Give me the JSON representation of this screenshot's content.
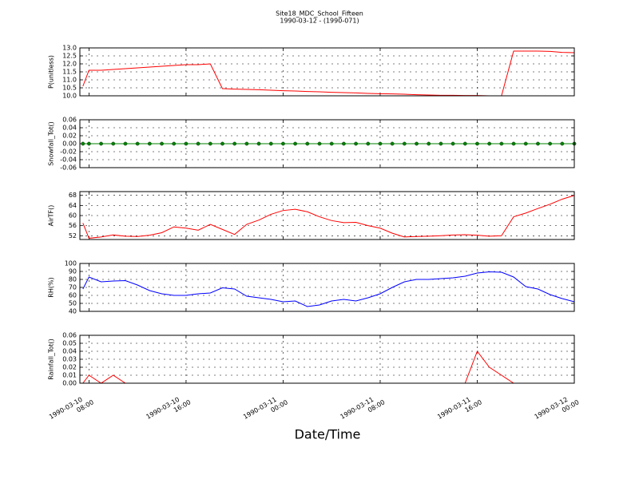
{
  "chart_data": [
    {
      "type": "line",
      "title": "Site18_MDC_School_Fifteen",
      "subtitle": "1990-03-12 - (1990-071)",
      "ylabel": "P(unitless)",
      "x": [
        "1990-03-10 07:30",
        "1990-03-10 08:00",
        "1990-03-10 09:00",
        "1990-03-10 10:00",
        "1990-03-10 11:00",
        "1990-03-10 12:00",
        "1990-03-10 13:00",
        "1990-03-10 14:00",
        "1990-03-10 15:00",
        "1990-03-10 16:00",
        "1990-03-10 17:00",
        "1990-03-10 18:00",
        "1990-03-10 19:00",
        "1990-03-10 20:00",
        "1990-03-10 21:00",
        "1990-03-10 22:00",
        "1990-03-10 23:00",
        "1990-03-11 00:00",
        "1990-03-11 01:00",
        "1990-03-11 02:00",
        "1990-03-11 03:00",
        "1990-03-11 04:00",
        "1990-03-11 05:00",
        "1990-03-11 06:00",
        "1990-03-11 07:00",
        "1990-03-11 08:00",
        "1990-03-11 09:00",
        "1990-03-11 10:00",
        "1990-03-11 11:00",
        "1990-03-11 12:00",
        "1990-03-11 13:00",
        "1990-03-11 14:00",
        "1990-03-11 15:00",
        "1990-03-11 16:00",
        "1990-03-11 17:00",
        "1990-03-11 18:00",
        "1990-03-11 19:00",
        "1990-03-11 20:00",
        "1990-03-11 21:00",
        "1990-03-11 22:00",
        "1990-03-11 23:00",
        "1990-03-12 00:00"
      ],
      "values": [
        10.6,
        11.6,
        11.6,
        11.65,
        11.7,
        11.75,
        11.8,
        11.85,
        11.9,
        11.95,
        11.95,
        12.0,
        10.45,
        10.42,
        10.4,
        10.38,
        10.35,
        10.32,
        10.3,
        10.27,
        10.25,
        10.22,
        10.2,
        10.18,
        10.15,
        10.13,
        10.12,
        10.1,
        10.07,
        10.05,
        10.03,
        10.03,
        10.02,
        10.02,
        10.0,
        10.0,
        12.8,
        12.8,
        12.8,
        12.78,
        12.72,
        12.7
      ],
      "color": "#ff0000",
      "xlim": [
        "1990-03-10 07:15",
        "1990-03-12 00:00"
      ],
      "ylim": [
        10.0,
        13.0
      ],
      "yticks": [
        {
          "value": 10,
          "label": "10.0"
        },
        {
          "value": 10.5,
          "label": "10.5"
        },
        {
          "value": 11,
          "label": "11.0"
        },
        {
          "value": 11.5,
          "label": "11.5"
        },
        {
          "value": 12,
          "label": "12.0"
        },
        {
          "value": 12.5,
          "label": "12.5"
        },
        {
          "value": 13,
          "label": "13.0"
        }
      ],
      "grid": true
    },
    {
      "type": "line",
      "ylabel": "Snowfall_Tot()",
      "x": [
        "1990-03-10 07:30",
        "1990-03-10 08:00",
        "1990-03-10 09:00",
        "1990-03-10 10:00",
        "1990-03-10 11:00",
        "1990-03-10 12:00",
        "1990-03-10 13:00",
        "1990-03-10 14:00",
        "1990-03-10 15:00",
        "1990-03-10 16:00",
        "1990-03-10 17:00",
        "1990-03-10 18:00",
        "1990-03-10 19:00",
        "1990-03-10 20:00",
        "1990-03-10 21:00",
        "1990-03-10 22:00",
        "1990-03-10 23:00",
        "1990-03-11 00:00",
        "1990-03-11 01:00",
        "1990-03-11 02:00",
        "1990-03-11 03:00",
        "1990-03-11 04:00",
        "1990-03-11 05:00",
        "1990-03-11 06:00",
        "1990-03-11 07:00",
        "1990-03-11 08:00",
        "1990-03-11 09:00",
        "1990-03-11 10:00",
        "1990-03-11 11:00",
        "1990-03-11 12:00",
        "1990-03-11 13:00",
        "1990-03-11 14:00",
        "1990-03-11 15:00",
        "1990-03-11 16:00",
        "1990-03-11 17:00",
        "1990-03-11 18:00",
        "1990-03-11 19:00",
        "1990-03-11 20:00",
        "1990-03-11 21:00",
        "1990-03-11 22:00",
        "1990-03-11 23:00",
        "1990-03-12 00:00"
      ],
      "values": [
        0,
        0,
        0,
        0,
        0,
        0,
        0,
        0,
        0,
        0,
        0,
        0,
        0,
        0,
        0,
        0,
        0,
        0,
        0,
        0,
        0,
        0,
        0,
        0,
        0,
        0,
        0,
        0,
        0,
        0,
        0,
        0,
        0,
        0,
        0,
        0,
        0,
        0,
        0,
        0,
        0,
        0
      ],
      "color": "#008000",
      "marker": "o",
      "xlim": [
        "1990-03-10 07:15",
        "1990-03-12 00:00"
      ],
      "ylim": [
        -0.06,
        0.06
      ],
      "yticks": [
        -0.06,
        -0.04,
        -0.02,
        {
          "value": 0,
          "label": "0.00"
        },
        0.02,
        0.04,
        0.06
      ],
      "grid": true
    },
    {
      "type": "line",
      "ylabel": "AirTF()",
      "x": [
        "1990-03-10 07:30",
        "1990-03-10 08:00",
        "1990-03-10 09:00",
        "1990-03-10 10:00",
        "1990-03-10 11:00",
        "1990-03-10 12:00",
        "1990-03-10 13:00",
        "1990-03-10 14:00",
        "1990-03-10 15:00",
        "1990-03-10 16:00",
        "1990-03-10 17:00",
        "1990-03-10 18:00",
        "1990-03-10 19:00",
        "1990-03-10 20:00",
        "1990-03-10 21:00",
        "1990-03-10 22:00",
        "1990-03-10 23:00",
        "1990-03-11 00:00",
        "1990-03-11 01:00",
        "1990-03-11 02:00",
        "1990-03-11 03:00",
        "1990-03-11 04:00",
        "1990-03-11 05:00",
        "1990-03-11 06:00",
        "1990-03-11 07:00",
        "1990-03-11 08:00",
        "1990-03-11 09:00",
        "1990-03-11 10:00",
        "1990-03-11 11:00",
        "1990-03-11 12:00",
        "1990-03-11 13:00",
        "1990-03-11 14:00",
        "1990-03-11 15:00",
        "1990-03-11 16:00",
        "1990-03-11 17:00",
        "1990-03-11 18:00",
        "1990-03-11 19:00",
        "1990-03-11 20:00",
        "1990-03-11 21:00",
        "1990-03-11 22:00",
        "1990-03-11 23:00",
        "1990-03-12 00:00"
      ],
      "values": [
        57,
        51,
        51.5,
        52.3,
        51.8,
        51.7,
        52.2,
        53.2,
        55.5,
        55,
        54.2,
        56.5,
        54.5,
        52.5,
        56.5,
        58.2,
        60.5,
        62,
        62.5,
        61.5,
        59.5,
        58,
        57.2,
        57.3,
        56,
        55,
        53,
        51.5,
        51.7,
        51.8,
        52,
        52.3,
        52.4,
        52.2,
        51.8,
        52,
        59.5,
        61,
        62.8,
        64.5,
        66.5,
        68
      ],
      "color": "#ff0000",
      "xlim": [
        "1990-03-10 07:15",
        "1990-03-12 00:00"
      ],
      "ylim": [
        50.5,
        69.5
      ],
      "yticks": [
        52,
        56,
        60,
        64,
        68
      ],
      "grid": true
    },
    {
      "type": "line",
      "ylabel": "RH(%)",
      "x": [
        "1990-03-10 07:30",
        "1990-03-10 08:00",
        "1990-03-10 09:00",
        "1990-03-10 10:00",
        "1990-03-10 11:00",
        "1990-03-10 12:00",
        "1990-03-10 13:00",
        "1990-03-10 14:00",
        "1990-03-10 15:00",
        "1990-03-10 16:00",
        "1990-03-10 17:00",
        "1990-03-10 18:00",
        "1990-03-10 19:00",
        "1990-03-10 20:00",
        "1990-03-10 21:00",
        "1990-03-10 22:00",
        "1990-03-10 23:00",
        "1990-03-11 00:00",
        "1990-03-11 01:00",
        "1990-03-11 02:00",
        "1990-03-11 03:00",
        "1990-03-11 04:00",
        "1990-03-11 05:00",
        "1990-03-11 06:00",
        "1990-03-11 07:00",
        "1990-03-11 08:00",
        "1990-03-11 09:00",
        "1990-03-11 10:00",
        "1990-03-11 11:00",
        "1990-03-11 12:00",
        "1990-03-11 13:00",
        "1990-03-11 14:00",
        "1990-03-11 15:00",
        "1990-03-11 16:00",
        "1990-03-11 17:00",
        "1990-03-11 18:00",
        "1990-03-11 19:00",
        "1990-03-11 20:00",
        "1990-03-11 21:00",
        "1990-03-11 22:00",
        "1990-03-11 23:00",
        "1990-03-12 00:00"
      ],
      "values": [
        68,
        83,
        77,
        78,
        78.5,
        73,
        66,
        62,
        60,
        60,
        62,
        63,
        69.5,
        68,
        59,
        57,
        55,
        52,
        53,
        46,
        48,
        53,
        55,
        53,
        57,
        62,
        70,
        77,
        80,
        80,
        81,
        82,
        84,
        88,
        89.5,
        89,
        83,
        71,
        68,
        61,
        56,
        52
      ],
      "color": "#0000ff",
      "xlim": [
        "1990-03-10 07:15",
        "1990-03-12 00:00"
      ],
      "ylim": [
        40,
        100
      ],
      "yticks": [
        40,
        50,
        60,
        70,
        80,
        90,
        100
      ],
      "grid": true
    },
    {
      "type": "line",
      "ylabel": "Rainfall_Tot()",
      "xlabel": "Date/Time",
      "x": [
        "1990-03-10 07:30",
        "1990-03-10 08:00",
        "1990-03-10 09:00",
        "1990-03-10 10:00",
        "1990-03-10 11:00",
        "1990-03-10 12:00",
        "1990-03-10 13:00",
        "1990-03-10 14:00",
        "1990-03-10 15:00",
        "1990-03-10 16:00",
        "1990-03-10 17:00",
        "1990-03-10 18:00",
        "1990-03-10 19:00",
        "1990-03-10 20:00",
        "1990-03-10 21:00",
        "1990-03-10 22:00",
        "1990-03-10 23:00",
        "1990-03-11 00:00",
        "1990-03-11 01:00",
        "1990-03-11 02:00",
        "1990-03-11 03:00",
        "1990-03-11 04:00",
        "1990-03-11 05:00",
        "1990-03-11 06:00",
        "1990-03-11 07:00",
        "1990-03-11 08:00",
        "1990-03-11 09:00",
        "1990-03-11 10:00",
        "1990-03-11 11:00",
        "1990-03-11 12:00",
        "1990-03-11 13:00",
        "1990-03-11 14:00",
        "1990-03-11 15:00",
        "1990-03-11 16:00",
        "1990-03-11 17:00",
        "1990-03-11 18:00",
        "1990-03-11 19:00",
        "1990-03-11 20:00",
        "1990-03-11 21:00",
        "1990-03-11 22:00",
        "1990-03-11 23:00",
        "1990-03-12 00:00"
      ],
      "values": [
        0,
        0.01,
        0,
        0.01,
        0,
        0,
        0,
        0,
        0,
        0,
        0,
        0,
        0,
        0,
        0,
        0,
        0,
        0,
        0,
        0,
        0,
        0,
        0,
        0,
        0,
        0,
        0,
        0,
        0,
        0,
        0,
        0,
        0,
        0.04,
        0.02,
        0.01,
        0,
        0,
        0,
        0,
        0,
        0
      ],
      "color": "#ff0000",
      "xlim": [
        "1990-03-10 07:15",
        "1990-03-12 00:00"
      ],
      "ylim": [
        0,
        0.06
      ],
      "yticks": [
        {
          "value": 0,
          "label": "0.00"
        },
        0.01,
        0.02,
        0.03,
        0.04,
        0.05,
        0.06
      ],
      "xticks": [
        "1990-03-10 08:00",
        "1990-03-10 16:00",
        "1990-03-11 00:00",
        "1990-03-11 08:00",
        "1990-03-11 16:00",
        "1990-03-12 00:00"
      ],
      "grid": true
    }
  ]
}
